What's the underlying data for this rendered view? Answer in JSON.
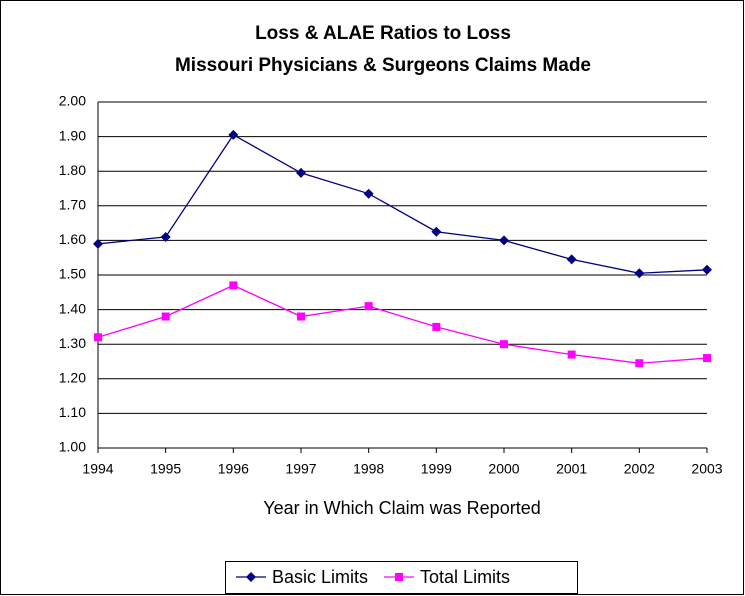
{
  "chart_data": {
    "type": "line",
    "title": "Loss & ALAE Ratios to Loss",
    "subtitle": "Missouri Physicians & Surgeons Claims Made",
    "x_label": "Year in Which Claim was Reported",
    "categories": [
      "1994",
      "1995",
      "1996",
      "1997",
      "1998",
      "1999",
      "2000",
      "2001",
      "2002",
      "2003"
    ],
    "series": [
      {
        "name": "Basic Limits",
        "color": "#000080",
        "marker": "diamond",
        "values": [
          1.59,
          1.61,
          1.905,
          1.795,
          1.735,
          1.625,
          1.6,
          1.545,
          1.505,
          1.515
        ]
      },
      {
        "name": "Total Limits",
        "color": "#ff00ff",
        "marker": "square",
        "values": [
          1.32,
          1.38,
          1.47,
          1.38,
          1.41,
          1.35,
          1.3,
          1.27,
          1.245,
          1.26
        ]
      }
    ],
    "ylim": [
      1.0,
      2.0
    ],
    "yticks": [
      {
        "value": 1.0,
        "label": "1.00"
      },
      {
        "value": 1.1,
        "label": "1.10"
      },
      {
        "value": 1.2,
        "label": "1.20"
      },
      {
        "value": 1.3,
        "label": "1.30"
      },
      {
        "value": 1.4,
        "label": "1.40"
      },
      {
        "value": 1.5,
        "label": "1.50"
      },
      {
        "value": 1.6,
        "label": "1.60"
      },
      {
        "value": 1.7,
        "label": "1.70"
      },
      {
        "value": 1.8,
        "label": "1.80"
      },
      {
        "value": 1.9,
        "label": "1.90"
      },
      {
        "value": 2.0,
        "label": "2.00"
      }
    ],
    "grid": true,
    "legend": "bottom"
  }
}
